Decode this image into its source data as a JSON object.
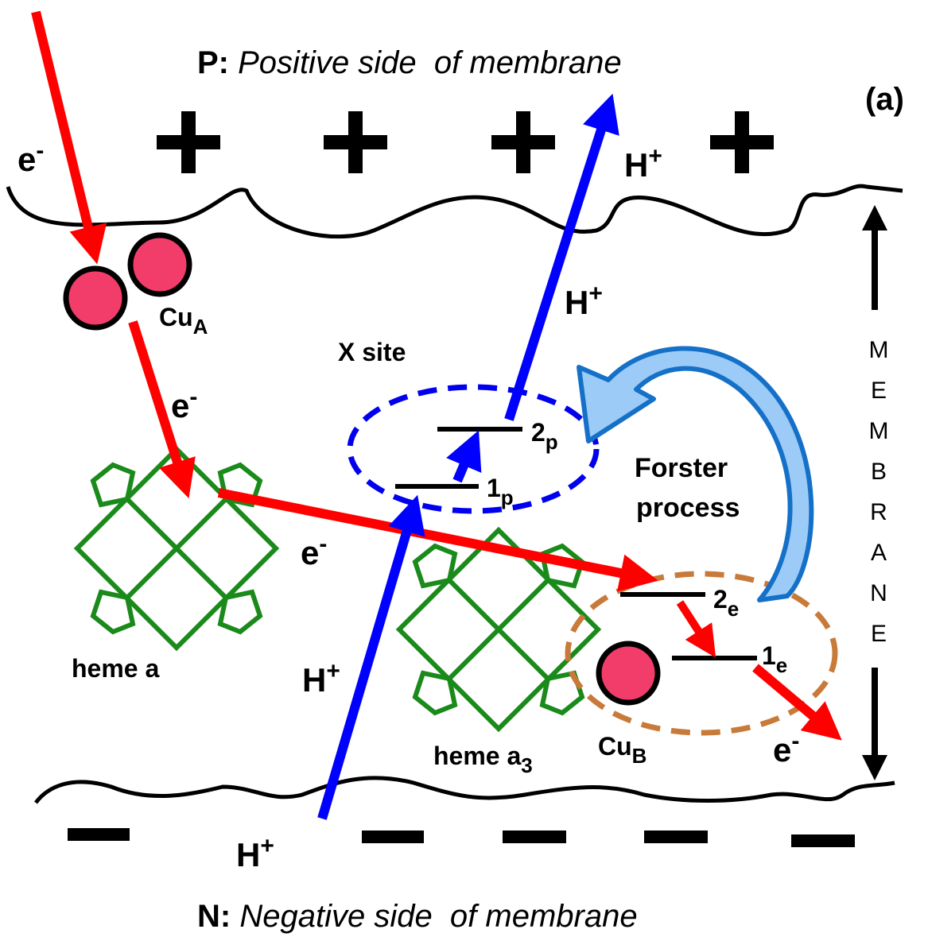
{
  "header": {
    "side_label": "P:",
    "side_text": "Positive side  of membrane",
    "panel_label": "(a)"
  },
  "footer": {
    "side_label": "N:",
    "side_text": "Negative side  of membrane"
  },
  "electron_labels": [
    {
      "base": "e",
      "sup": "-"
    },
    {
      "base": "e",
      "sup": "-"
    },
    {
      "base": "e",
      "sup": "-"
    },
    {
      "base": "e",
      "sup": "-"
    }
  ],
  "proton_labels": [
    {
      "base": "H",
      "sup": "+"
    },
    {
      "base": "H",
      "sup": "+"
    },
    {
      "base": "H",
      "sup": "+"
    },
    {
      "base": "H",
      "sup": "+"
    }
  ],
  "sites": {
    "cu_a": {
      "base": "Cu",
      "sub": "A"
    },
    "cu_b": {
      "base": "Cu",
      "sub": "B"
    },
    "x_site": "X site",
    "heme_a": "heme a",
    "heme_a3": {
      "base": "heme a",
      "sub": "3"
    }
  },
  "levels": {
    "p2": {
      "base": "2",
      "sub": "p"
    },
    "p1": {
      "base": "1",
      "sub": "p"
    },
    "e2": {
      "base": "2",
      "sub": "e"
    },
    "e1": {
      "base": "1",
      "sub": "e"
    }
  },
  "forster": [
    "Forster",
    "process"
  ],
  "membrane_letters": [
    "M",
    "E",
    "M",
    "B",
    "R",
    "A",
    "N",
    "E"
  ]
}
